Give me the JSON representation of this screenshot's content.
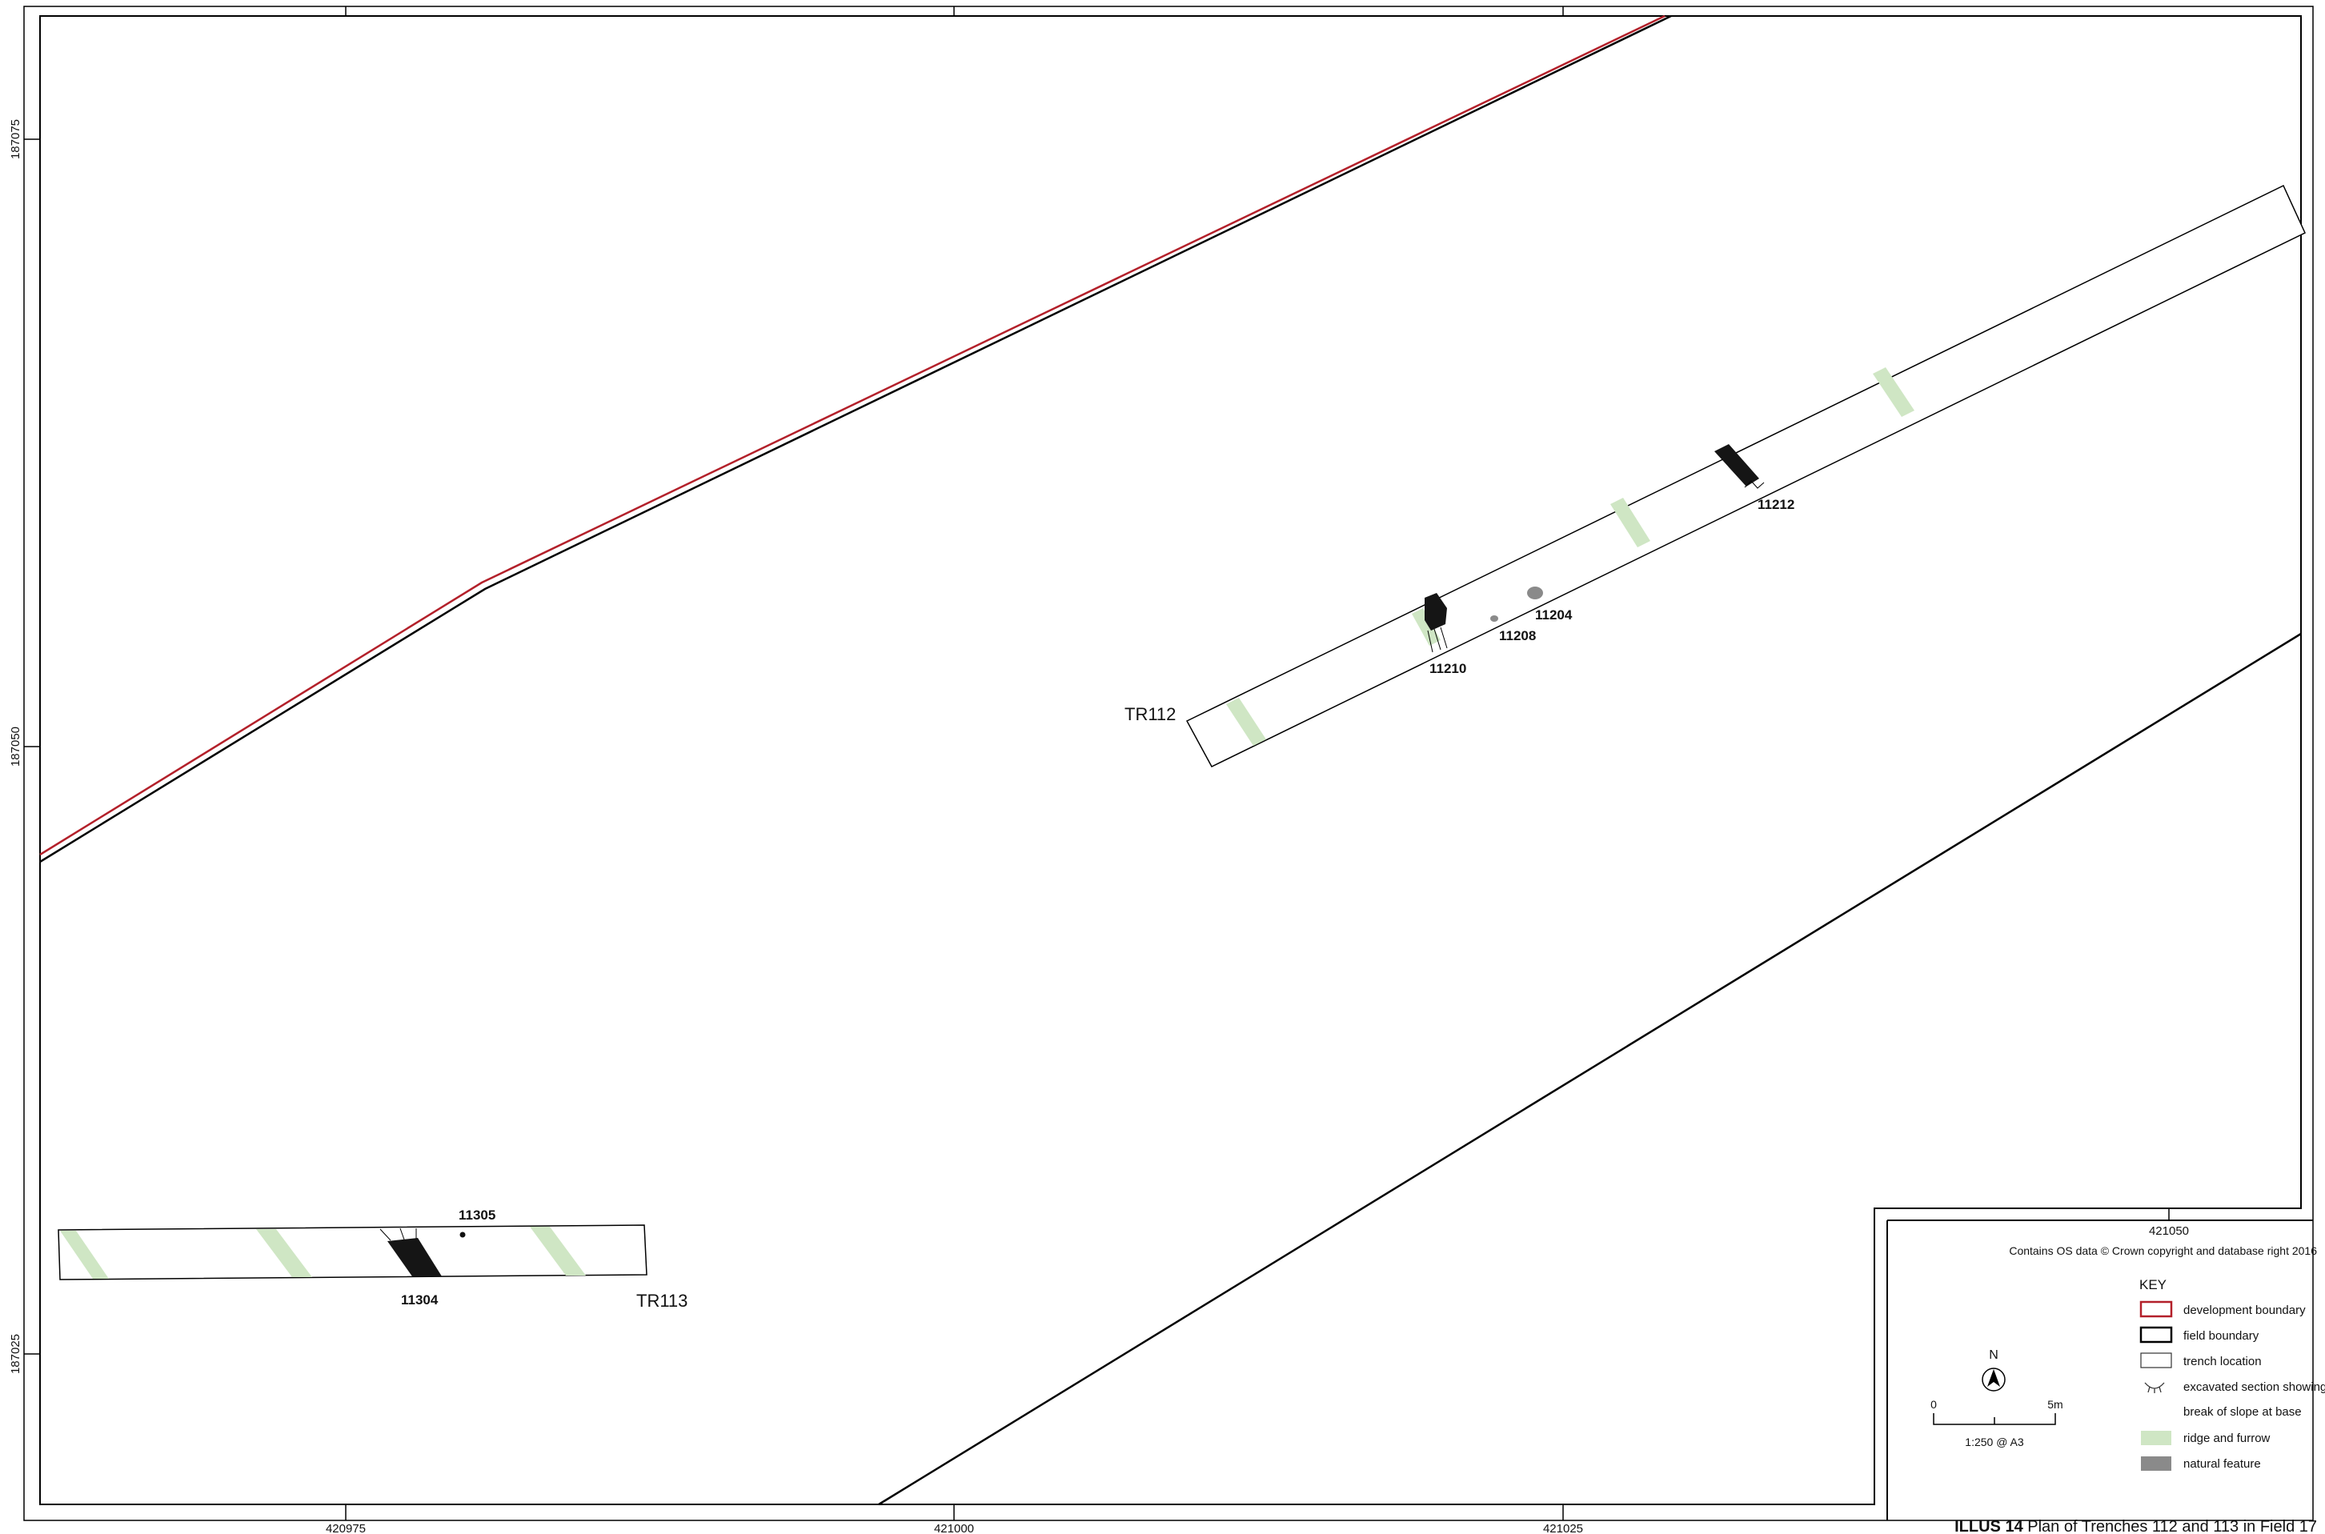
{
  "grid": {
    "x_ticks": [
      "420975",
      "421000",
      "421025",
      "421050"
    ],
    "y_ticks": [
      "187075",
      "187050",
      "187025"
    ]
  },
  "trenches": [
    {
      "id": "TR112",
      "label": "TR112"
    },
    {
      "id": "TR113",
      "label": "TR113"
    }
  ],
  "features": {
    "f11212": "11212",
    "f11204": "11204",
    "f11208": "11208",
    "f11210": "11210",
    "f11305": "11305",
    "f11304": "11304"
  },
  "copyright": "Contains OS data © Crown copyright and database right 2016",
  "key": {
    "title": "KEY",
    "items": [
      {
        "label": "development boundary",
        "symbol": "red-outline-box",
        "color": "#b3202a"
      },
      {
        "label": "field boundary",
        "symbol": "black-outline-box",
        "color": "#000000"
      },
      {
        "label": "trench location",
        "symbol": "thin-outline-box",
        "color": "#333333"
      },
      {
        "label": "excavated section showing",
        "symbol": "section-hachure-icon",
        "color": "#333333"
      },
      {
        "label": "break of slope at base",
        "symbol": "none",
        "color": ""
      },
      {
        "label": "ridge and furrow",
        "symbol": "filled-box",
        "color": "#cfe6c4"
      },
      {
        "label": "natural feature",
        "symbol": "filled-box",
        "color": "#8a8a8a"
      }
    ]
  },
  "north": {
    "label": "N"
  },
  "scale": {
    "start": "0",
    "end": "5m",
    "ratio": "1:250 @ A3"
  },
  "caption": {
    "number": "ILLUS 14",
    "text": "Plan of Trenches 112 and 113 in Field 17"
  },
  "colors": {
    "development_boundary": "#b3202a",
    "field_boundary": "#000000",
    "ridge_furrow": "#cfe6c4",
    "natural_feature": "#8a8a8a",
    "excavated_fill": "#111111"
  }
}
